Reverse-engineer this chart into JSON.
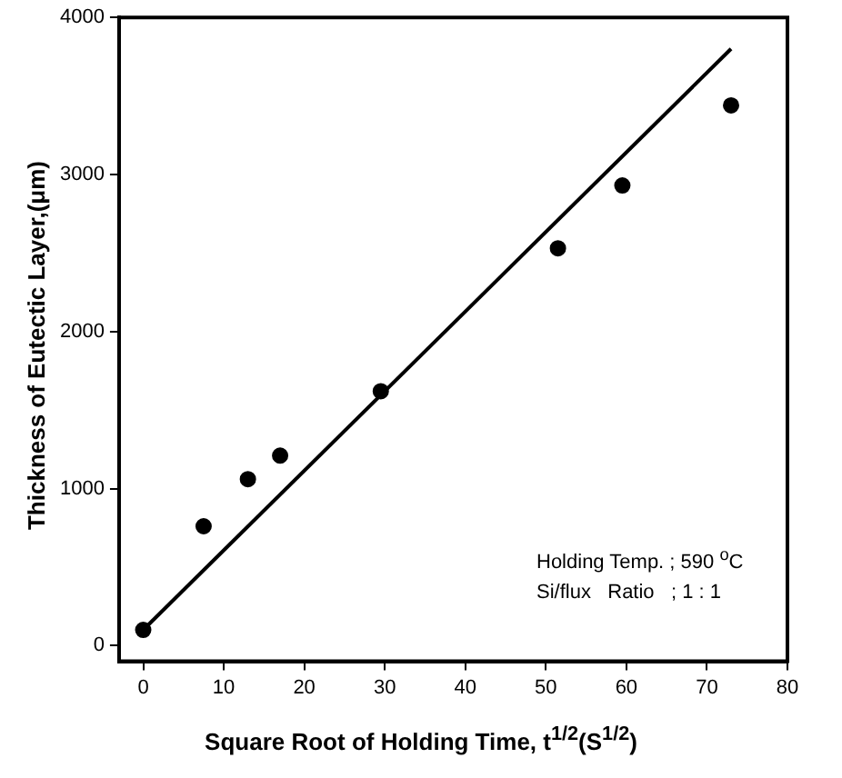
{
  "chart_data": {
    "type": "scatter",
    "xlabel": "Square Root of Holding Time, t$^{1/2}$(S$^{1/2}$)",
    "ylabel": "Thickness of Eutectic Layer,(μm)",
    "annotations": [
      "Holding Temp. ; 590 $^{o}$C",
      "Si/flux   Ratio   ; 1 : 1"
    ],
    "series": [
      {
        "type": "scatter",
        "color": "#000000",
        "marker": "circle",
        "x": [
          0,
          7.5,
          13,
          17,
          29.5,
          51.5,
          59.5,
          73
        ],
        "values": [
          100,
          760,
          1060,
          1210,
          1620,
          2530,
          2930,
          3440
        ]
      },
      {
        "type": "line",
        "color": "#000000",
        "marker": "none",
        "line_style": "solid",
        "x": [
          0,
          73
        ],
        "values": [
          100,
          3800
        ]
      }
    ],
    "xlim": [
      -3,
      80
    ],
    "xticks": [
      0,
      10,
      20,
      30,
      40,
      50,
      60,
      70,
      80
    ],
    "ylim": [
      -100,
      4000
    ],
    "yticks": [
      0,
      1000,
      2000,
      3000,
      4000
    ],
    "grid": false,
    "legend": false
  }
}
